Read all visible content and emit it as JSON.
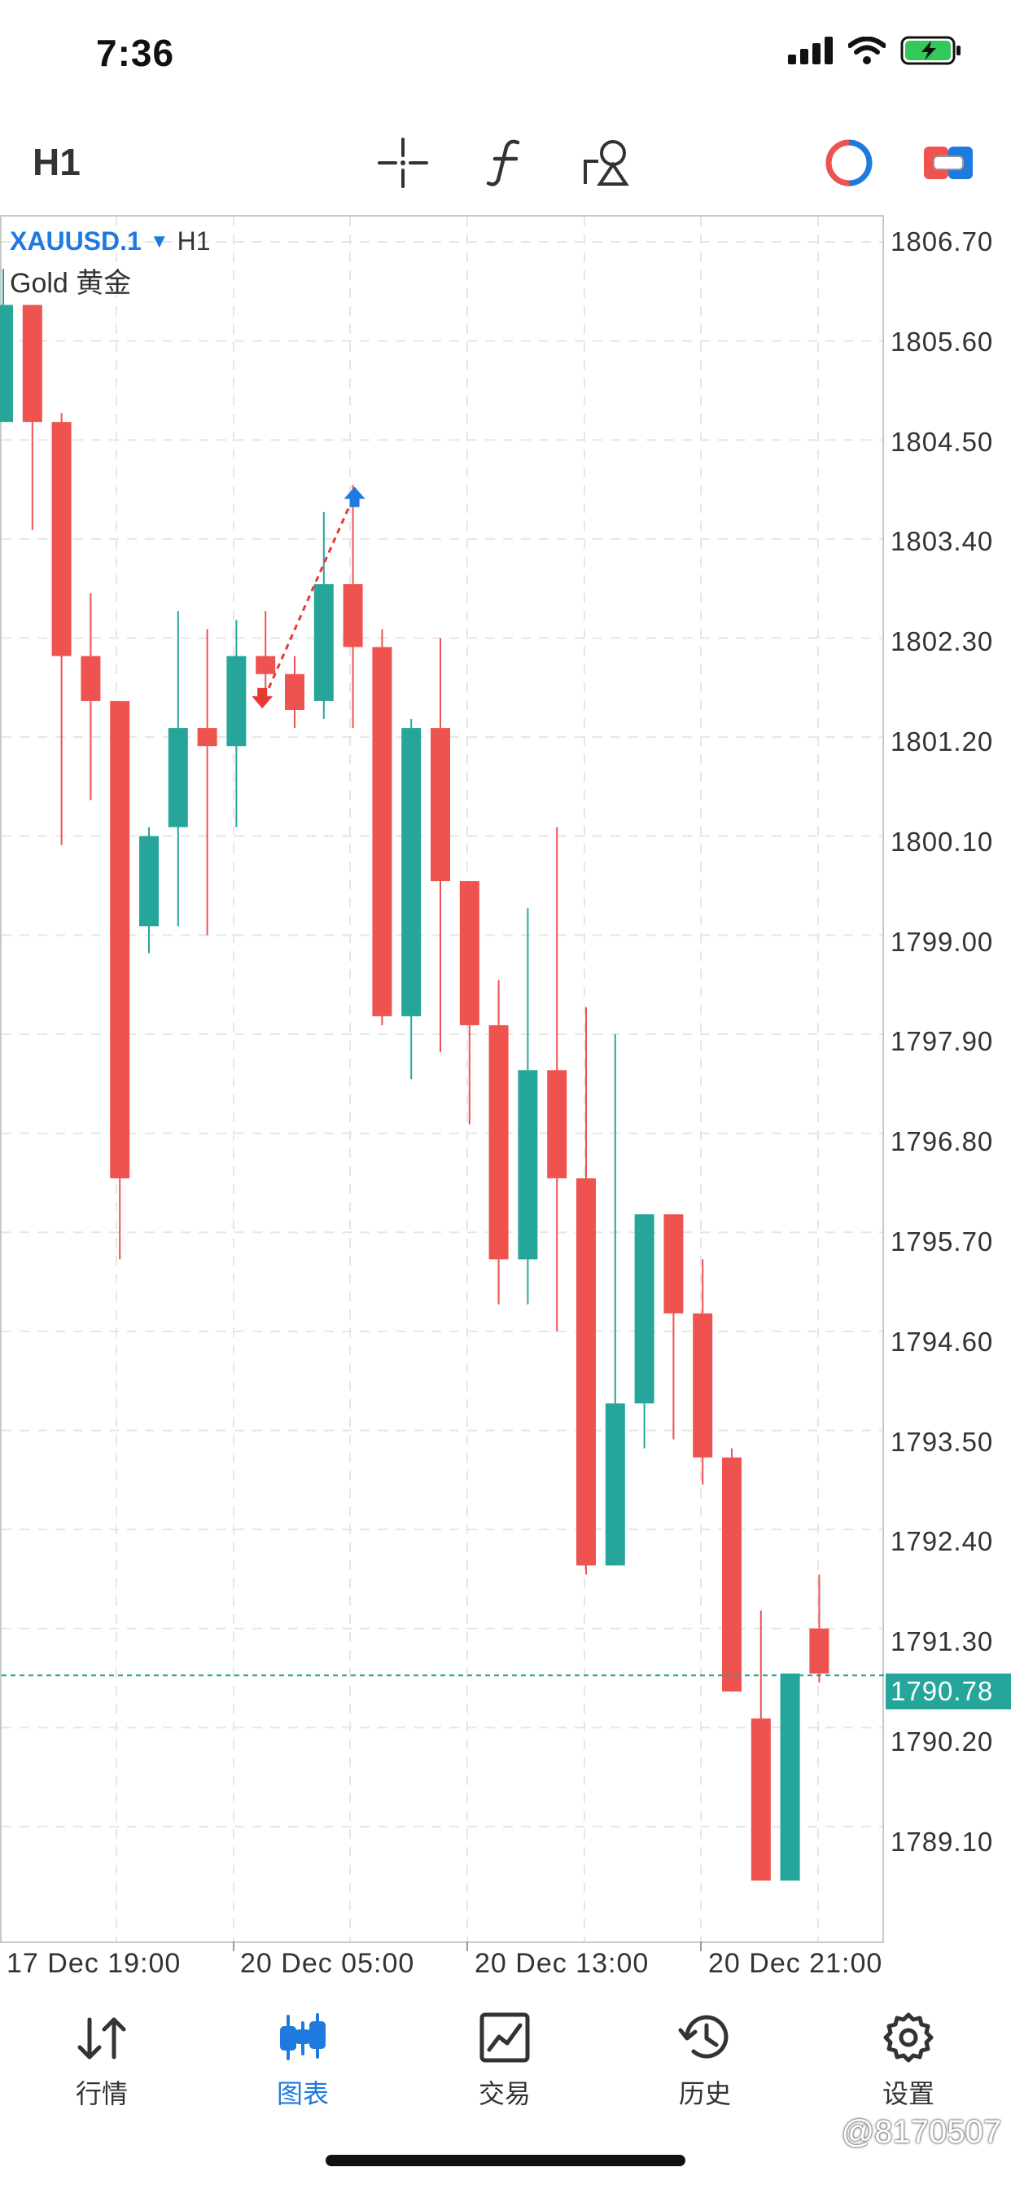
{
  "status_bar": {
    "time": "7:36"
  },
  "toolbar": {
    "timeframe": "H1"
  },
  "chart": {
    "symbol": "XAUUSD.1",
    "timeframe": "H1",
    "description": "Gold 黄金",
    "y_axis": [
      "1806.70",
      "1805.60",
      "1804.50",
      "1803.40",
      "1802.30",
      "1801.20",
      "1800.10",
      "1799.00",
      "1797.90",
      "1796.80",
      "1795.70",
      "1794.60",
      "1793.50",
      "1792.40",
      "1791.30",
      "1790.20",
      "1789.10"
    ],
    "current_price": "1790.78",
    "x_axis": [
      "17 Dec 19:00",
      "20 Dec 05:00",
      "20 Dec 13:00",
      "20 Dec 21:00"
    ],
    "colors": {
      "up": "#26a69a",
      "down": "#ef5350",
      "grid": "#e6e6e6",
      "price_line": "#26a69a",
      "buy_arrow": "#1f7ae0",
      "sell_arrow": "#e53935"
    }
  },
  "chart_data": {
    "type": "candlestick",
    "y_ticks": [
      1806.7,
      1805.6,
      1804.5,
      1803.4,
      1802.3,
      1801.2,
      1800.1,
      1799.0,
      1797.9,
      1796.8,
      1795.7,
      1794.6,
      1793.5,
      1792.4,
      1791.3,
      1790.2,
      1789.1
    ],
    "x_labels": [
      "17 Dec 19:00",
      "20 Dec 05:00",
      "20 Dec 13:00",
      "20 Dec 21:00"
    ],
    "current_price": 1790.78,
    "candles": [
      {
        "o": 1804.7,
        "h": 1806.4,
        "l": 1804.7,
        "c": 1806.0
      },
      {
        "o": 1806.0,
        "h": 1806.0,
        "l": 1803.5,
        "c": 1804.7
      },
      {
        "o": 1804.7,
        "h": 1804.8,
        "l": 1800.0,
        "c": 1802.1
      },
      {
        "o": 1802.1,
        "h": 1802.8,
        "l": 1800.5,
        "c": 1801.6
      },
      {
        "o": 1801.6,
        "h": 1801.6,
        "l": 1795.4,
        "c": 1796.3
      },
      {
        "o": 1799.1,
        "h": 1800.2,
        "l": 1798.8,
        "c": 1800.1
      },
      {
        "o": 1800.2,
        "h": 1802.6,
        "l": 1799.1,
        "c": 1801.3
      },
      {
        "o": 1801.3,
        "h": 1802.4,
        "l": 1799.0,
        "c": 1801.1
      },
      {
        "o": 1801.1,
        "h": 1802.5,
        "l": 1800.2,
        "c": 1802.1
      },
      {
        "o": 1802.1,
        "h": 1802.6,
        "l": 1801.6,
        "c": 1801.9
      },
      {
        "o": 1801.9,
        "h": 1802.1,
        "l": 1801.3,
        "c": 1801.5
      },
      {
        "o": 1801.6,
        "h": 1803.7,
        "l": 1801.4,
        "c": 1802.9
      },
      {
        "o": 1802.9,
        "h": 1804.0,
        "l": 1801.3,
        "c": 1802.2
      },
      {
        "o": 1802.2,
        "h": 1802.4,
        "l": 1798.0,
        "c": 1798.1
      },
      {
        "o": 1798.1,
        "h": 1801.4,
        "l": 1797.4,
        "c": 1801.3
      },
      {
        "o": 1801.3,
        "h": 1802.3,
        "l": 1797.7,
        "c": 1799.6
      },
      {
        "o": 1799.6,
        "h": 1799.6,
        "l": 1796.9,
        "c": 1798.0
      },
      {
        "o": 1798.0,
        "h": 1798.5,
        "l": 1794.9,
        "c": 1795.4
      },
      {
        "o": 1795.4,
        "h": 1799.3,
        "l": 1794.9,
        "c": 1797.5
      },
      {
        "o": 1797.5,
        "h": 1800.2,
        "l": 1794.6,
        "c": 1796.3
      },
      {
        "o": 1796.3,
        "h": 1798.2,
        "l": 1791.9,
        "c": 1792.0
      },
      {
        "o": 1792.0,
        "h": 1797.9,
        "l": 1792.0,
        "c": 1793.8
      },
      {
        "o": 1793.8,
        "h": 1795.9,
        "l": 1793.3,
        "c": 1795.9
      },
      {
        "o": 1795.9,
        "h": 1795.9,
        "l": 1793.4,
        "c": 1794.8
      },
      {
        "o": 1794.8,
        "h": 1795.4,
        "l": 1792.9,
        "c": 1793.2
      },
      {
        "o": 1793.2,
        "h": 1793.3,
        "l": 1790.6,
        "c": 1790.6
      },
      {
        "o": 1790.3,
        "h": 1791.5,
        "l": 1788.5,
        "c": 1788.5
      },
      {
        "o": 1788.5,
        "h": 1790.8,
        "l": 1788.5,
        "c": 1790.8
      },
      {
        "o": 1791.3,
        "h": 1791.9,
        "l": 1790.7,
        "c": 1790.8
      }
    ],
    "markers": [
      {
        "candle": 9,
        "price": 1801.6,
        "type": "sell"
      },
      {
        "candle": 12,
        "price": 1803.9,
        "type": "buy"
      }
    ]
  },
  "tabs": [
    {
      "label": "行情",
      "icon": "quotes-icon",
      "active": false
    },
    {
      "label": "图表",
      "icon": "chart-icon",
      "active": true
    },
    {
      "label": "交易",
      "icon": "trade-icon",
      "active": false
    },
    {
      "label": "历史",
      "icon": "history-icon",
      "active": false
    },
    {
      "label": "设置",
      "icon": "settings-icon",
      "active": false
    }
  ],
  "watermark": "@8170507"
}
